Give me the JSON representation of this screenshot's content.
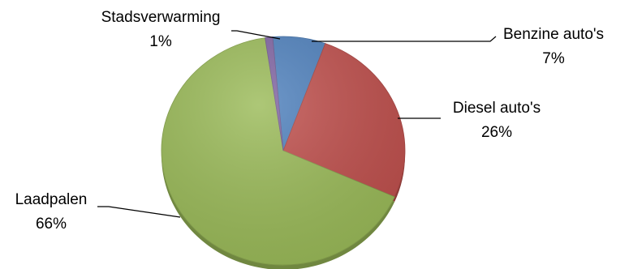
{
  "chart_data": {
    "type": "pie",
    "style": "3d",
    "title": "",
    "legend": "none",
    "start_angle_deg": -5,
    "direction": "clockwise",
    "slices": [
      {
        "label": "Benzine auto's",
        "percent_label": "7%",
        "value": 7,
        "color": "#4f81bd"
      },
      {
        "label": "Diesel auto's",
        "percent_label": "26%",
        "value": 26,
        "color": "#c0504d"
      },
      {
        "label": "Laadpalen",
        "percent_label": "66%",
        "value": 66,
        "color": "#9bbb59"
      },
      {
        "label": "Stadsverwarming",
        "percent_label": "1%",
        "value": 1,
        "color": "#8064a2"
      }
    ]
  }
}
